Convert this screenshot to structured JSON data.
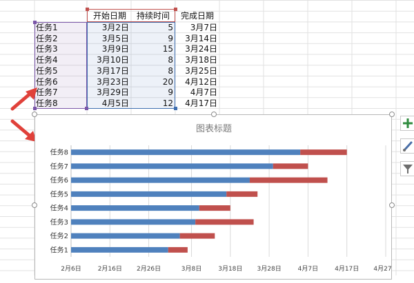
{
  "sheet": {
    "headers": {
      "start": "开始日期",
      "duration": "持续时间",
      "end": "完成日期"
    },
    "rows": [
      {
        "task": "任务1",
        "start": "3月2日",
        "duration": "5",
        "end": "3月7日"
      },
      {
        "task": "任务2",
        "start": "3月5日",
        "duration": "9",
        "end": "3月14日"
      },
      {
        "task": "任务3",
        "start": "3月9日",
        "duration": "15",
        "end": "3月24日"
      },
      {
        "task": "任务4",
        "start": "3月10日",
        "duration": "8",
        "end": "3月18日"
      },
      {
        "task": "任务5",
        "start": "3月17日",
        "duration": "8",
        "end": "3月25日"
      },
      {
        "task": "任务6",
        "start": "3月23日",
        "duration": "20",
        "end": "4月12日"
      },
      {
        "task": "任务7",
        "start": "3月29日",
        "duration": "9",
        "end": "4月7日"
      },
      {
        "task": "任务8",
        "start": "4月5日",
        "duration": "12",
        "end": "4月17日"
      }
    ]
  },
  "chart_data": {
    "type": "bar",
    "orientation": "horizontal",
    "stacked": true,
    "title": "图表标题",
    "categories": [
      "任务1",
      "任务2",
      "任务3",
      "任务4",
      "任务5",
      "任务6",
      "任务7",
      "任务8"
    ],
    "series": [
      {
        "values": [
          "3月2日",
          "3月5日",
          "3月9日",
          "3月10日",
          "3月17日",
          "3月23日",
          "3月29日",
          "4月5日"
        ],
        "color": "#4f81bd"
      },
      {
        "values": [
          5,
          9,
          15,
          8,
          8,
          20,
          9,
          12
        ],
        "color": "#c0504d"
      }
    ],
    "x_ticks": [
      "2月6日",
      "2月16日",
      "2月26日",
      "3月8日",
      "3月18日",
      "3月28日",
      "4月7日",
      "4月17日",
      "4月27日"
    ],
    "grid": true,
    "legend": "none"
  },
  "side_icons": [
    "plus-icon",
    "brush-icon",
    "filter-icon"
  ],
  "colors": {
    "arrow": "#e0413a",
    "grid": "#d9d9d9",
    "chart_border": "#b7b7b7"
  }
}
